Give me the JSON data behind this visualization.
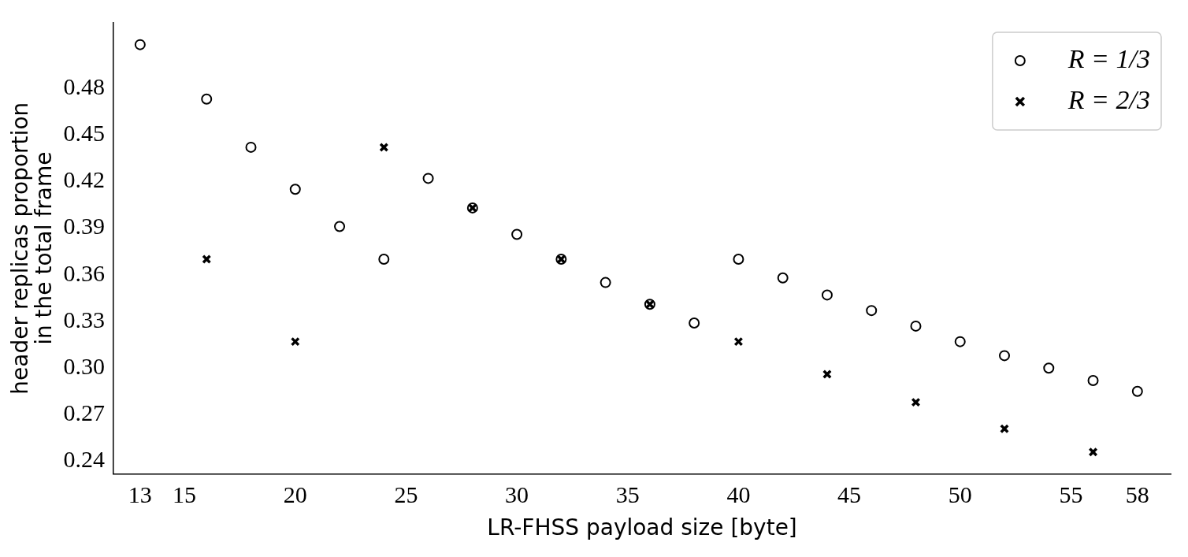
{
  "chart_data": {
    "type": "scatter",
    "xlabel": "LR-FHSS payload size [byte]",
    "ylabel": "header replicas proportion\nin the total frame",
    "xlim": [
      11.8,
      59.5
    ],
    "ylim": [
      0.232,
      0.522
    ],
    "xticks": [
      13,
      15,
      20,
      25,
      30,
      35,
      40,
      45,
      50,
      55,
      58
    ],
    "yticks": [
      0.24,
      0.27,
      {
        "value": 0.3,
        "label": "0.30"
      },
      0.33,
      0.36,
      0.39,
      0.42,
      0.45,
      0.48
    ],
    "grid": false,
    "legend": "top right",
    "series": [
      {
        "name": "R = 1/3",
        "color": "#000000",
        "marker": "circle",
        "x": [
          13,
          16,
          18,
          20,
          22,
          24,
          26,
          28,
          30,
          32,
          34,
          36,
          38,
          40,
          42,
          44,
          46,
          48,
          50,
          52,
          54,
          56,
          58
        ],
        "values": [
          0.508,
          0.473,
          0.442,
          0.415,
          0.391,
          0.37,
          0.422,
          0.403,
          0.386,
          0.37,
          0.355,
          0.341,
          0.329,
          0.37,
          0.358,
          0.347,
          0.337,
          0.327,
          0.317,
          0.308,
          0.3,
          0.292,
          0.285
        ]
      },
      {
        "name": "R = 2/3",
        "color": "#000000",
        "marker": "cross",
        "x": [
          16,
          20,
          24,
          28,
          32,
          36,
          40,
          44,
          48,
          52,
          56
        ],
        "values": [
          0.37,
          0.317,
          0.442,
          0.403,
          0.37,
          0.341,
          0.317,
          0.296,
          0.278,
          0.261,
          0.246
        ]
      }
    ]
  }
}
